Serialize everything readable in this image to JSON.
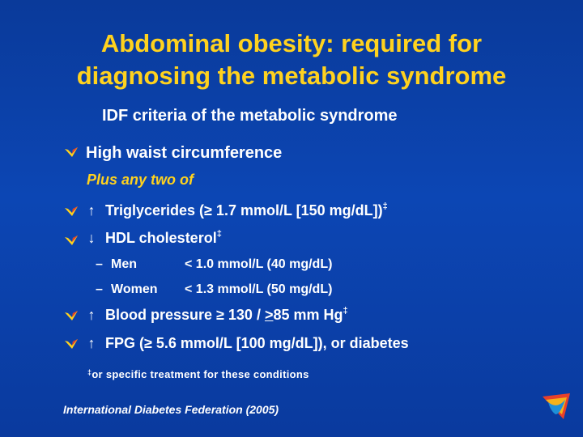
{
  "slide": {
    "title_line1": "Abdominal obesity: required for",
    "title_line2": "diagnosing the metabolic syndrome",
    "subtitle": "IDF criteria of the metabolic syndrome",
    "criterion_main": "High waist circumference",
    "plus_any_two": "Plus any two of",
    "items": [
      {
        "arrow": "up",
        "text": "Triglycerides (≥ 1.7 mmol/L [150 mg/dL])",
        "mark": "‡"
      },
      {
        "arrow": "down",
        "text": "HDL cholesterol",
        "mark": "‡"
      },
      {
        "arrow": "up",
        "text_pre": "Blood pressure ≥ 130 / ",
        "text_u": ">",
        "text_post": "85 mm Hg",
        "mark": "‡"
      },
      {
        "arrow": "up",
        "text": "FPG (≥ 5.6 mmol/L [100 mg/dL]), or diabetes"
      }
    ],
    "hdl_rows": [
      {
        "dash": "–",
        "sex": "Men",
        "value": "< 1.0 mmol/L (40 mg/dL)"
      },
      {
        "dash": "–",
        "sex": "Women",
        "value": "< 1.3 mmol/L (50 mg/dL)"
      }
    ],
    "footnote_mark": "‡",
    "footnote": "or specific treatment for these conditions",
    "reference": "International Diabetes Federation (2005)"
  },
  "icons": {
    "bullet": "check-bullet-icon",
    "up": "up-arrow-icon",
    "down": "down-arrow-icon",
    "logo": "idf-logo-icon"
  },
  "colors": {
    "background": "#0c46b4",
    "title": "#ffd21e",
    "text": "#ffffff",
    "accent": "#ffd21e"
  }
}
